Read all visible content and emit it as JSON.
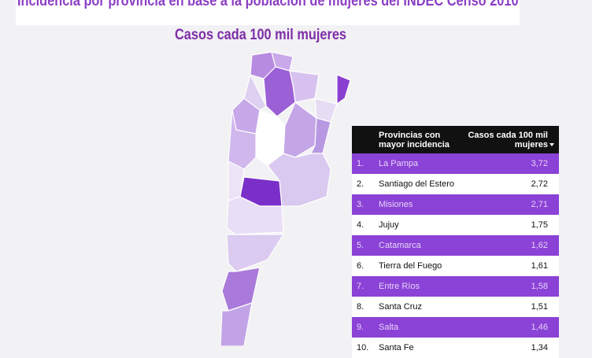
{
  "header": {
    "title": "Incidencia por provincia en base a la población de mujeres del INDEC Censo 2010",
    "subtitle": "Casos cada 100 mil mujeres"
  },
  "table": {
    "columns": [
      "Provincias con mayor incidencia",
      "Casos cada 100 mil mujeres"
    ],
    "rows": [
      [
        "1.",
        "La Pampa",
        "3,72"
      ],
      [
        "2.",
        "Santiago del Estero",
        "2,72"
      ],
      [
        "3.",
        "Misiones",
        "2,71"
      ],
      [
        "4.",
        "Jujuy",
        "1,75"
      ],
      [
        "5.",
        "Catamarca",
        "1,62"
      ],
      [
        "6.",
        "Tierra del Fuego",
        "1,61"
      ],
      [
        "7.",
        "Entre Ríos",
        "1,58"
      ],
      [
        "8.",
        "Santa Cruz",
        "1,51"
      ],
      [
        "9.",
        "Salta",
        "1,46"
      ],
      [
        "10.",
        "Santa Fe",
        "1,34"
      ]
    ]
  }
}
